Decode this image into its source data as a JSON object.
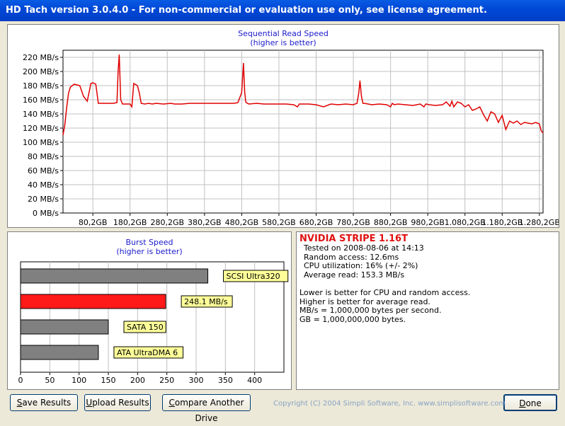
{
  "window": {
    "title": "HD Tach version 3.0.4.0  - For non-commercial or evaluation use only, see license agreement."
  },
  "colors": {
    "series": "#e00000",
    "burst_other": "#808080",
    "burst_this": "#ff1a1a",
    "label_bg": "#ffff99",
    "title_blue": "#1a1acc"
  },
  "chart_data": [
    {
      "type": "line",
      "title": "Sequential Read Speed",
      "subtitle": "(higher is better)",
      "ylim": [
        0,
        230
      ],
      "y_ticks": [
        0,
        20,
        40,
        60,
        80,
        100,
        120,
        140,
        160,
        180,
        200,
        220
      ],
      "y_tick_labels": [
        "0 MB/s",
        "20 MB/s",
        "40 MB/s",
        "60 MB/s",
        "80 MB/s",
        "100 MB/s",
        "120 MB/s",
        "140 MB/s",
        "160 MB/s",
        "180 MB/s",
        "200 MB/s",
        "220 MB/s"
      ],
      "xlim": [
        0,
        1290
      ],
      "x_ticks": [
        80.2,
        180.2,
        280.2,
        380.2,
        480.2,
        580.2,
        680.2,
        780.2,
        880.2,
        980.2,
        1080.2,
        1180.2,
        1280.2
      ],
      "x_tick_labels": [
        "80,2GB",
        "180,2GB",
        "280,2GB",
        "380,2GB",
        "480,2GB",
        "580,2GB",
        "680,2GB",
        "780,2GB",
        "880,2GB",
        "980,2GB",
        "1.080,2GB",
        "1.180,2GB",
        "1.280,2GB"
      ],
      "grid": true,
      "series": [
        {
          "x": [
            0,
            5,
            10,
            15,
            20,
            30,
            45,
            55,
            65,
            75,
            80,
            88,
            95,
            110,
            125,
            135,
            145,
            148,
            151,
            155,
            160,
            170,
            180,
            185,
            190,
            200,
            205,
            210,
            220,
            230,
            240,
            250,
            270,
            290,
            300,
            320,
            340,
            360,
            380,
            400,
            420,
            440,
            460,
            470,
            480,
            485,
            488,
            491,
            495,
            500,
            520,
            540,
            560,
            580,
            600,
            620,
            630,
            635,
            640,
            660,
            680,
            700,
            720,
            740,
            760,
            780,
            790,
            795,
            798,
            802,
            806,
            810,
            830,
            850,
            870,
            880,
            885,
            890,
            900,
            920,
            940,
            960,
            970,
            975,
            985,
            1000,
            1020,
            1030,
            1040,
            1045,
            1050,
            1060,
            1070,
            1080,
            1090,
            1100,
            1110,
            1120,
            1130,
            1140,
            1150,
            1160,
            1170,
            1180,
            1190,
            1200,
            1210,
            1220,
            1230,
            1240,
            1250,
            1260,
            1270,
            1280,
            1285,
            1290
          ],
          "values": [
            110,
            125,
            150,
            170,
            178,
            182,
            180,
            165,
            158,
            183,
            184,
            182,
            155,
            155,
            155,
            155,
            156,
            200,
            224,
            160,
            154,
            154,
            154,
            150,
            183,
            180,
            170,
            155,
            154,
            155,
            154,
            155,
            154,
            155,
            154,
            154,
            155,
            155,
            155,
            155,
            155,
            155,
            155,
            156,
            170,
            212,
            172,
            157,
            155,
            154,
            155,
            154,
            154,
            154,
            154,
            153,
            150,
            154,
            154,
            154,
            153,
            150,
            154,
            153,
            154,
            153,
            155,
            170,
            187,
            165,
            155,
            155,
            153,
            154,
            153,
            150,
            155,
            153,
            154,
            153,
            152,
            154,
            150,
            154,
            153,
            152,
            153,
            157,
            151,
            158,
            150,
            157,
            155,
            150,
            153,
            145,
            147,
            150,
            139,
            130,
            143,
            140,
            128,
            138,
            118,
            130,
            127,
            130,
            125,
            128,
            127,
            126,
            128,
            126,
            116,
            113
          ]
        }
      ]
    },
    {
      "type": "bar",
      "orientation": "horizontal",
      "title": "Burst Speed",
      "subtitle": "(higher is better)",
      "xlim": [
        0,
        450
      ],
      "x_ticks": [
        0,
        50,
        100,
        150,
        200,
        250,
        300,
        350,
        400
      ],
      "x_tick_labels": [
        "0",
        "50",
        "100",
        "150",
        "200",
        "250",
        "300",
        "350",
        "400"
      ],
      "grid": true,
      "categories": [
        "SCSI Ultra320",
        "248.1 MB/s",
        "SATA 150",
        "ATA UltraDMA 6"
      ],
      "values": [
        320,
        248.1,
        150,
        133
      ],
      "highlight_index": 1
    }
  ],
  "info": {
    "drive_name": "NVIDIA  STRIPE  1.16T",
    "tested_on": "Tested on 2008-08-06 at 14:13",
    "random_access": "Random access: 12.6ms",
    "cpu_utilization": "CPU utilization: 16% (+/- 2%)",
    "average_read": "Average read: 153.3 MB/s",
    "note1": "Lower is better for CPU and random access.",
    "note2": "Higher is better for average read.",
    "note3": "MB/s = 1,000,000 bytes per second.",
    "note4": "GB = 1,000,000,000 bytes."
  },
  "buttons": {
    "save_underline": "S",
    "save_rest": "ave Results",
    "upload_underline": "U",
    "upload_rest": "pload Results",
    "compare_underline": "C",
    "compare_rest": "ompare Another Drive",
    "done_underline": "D",
    "done_rest": "one"
  },
  "copyright": "Copyright (C) 2004 Simpli Software, Inc. www.simplisoftware.com"
}
